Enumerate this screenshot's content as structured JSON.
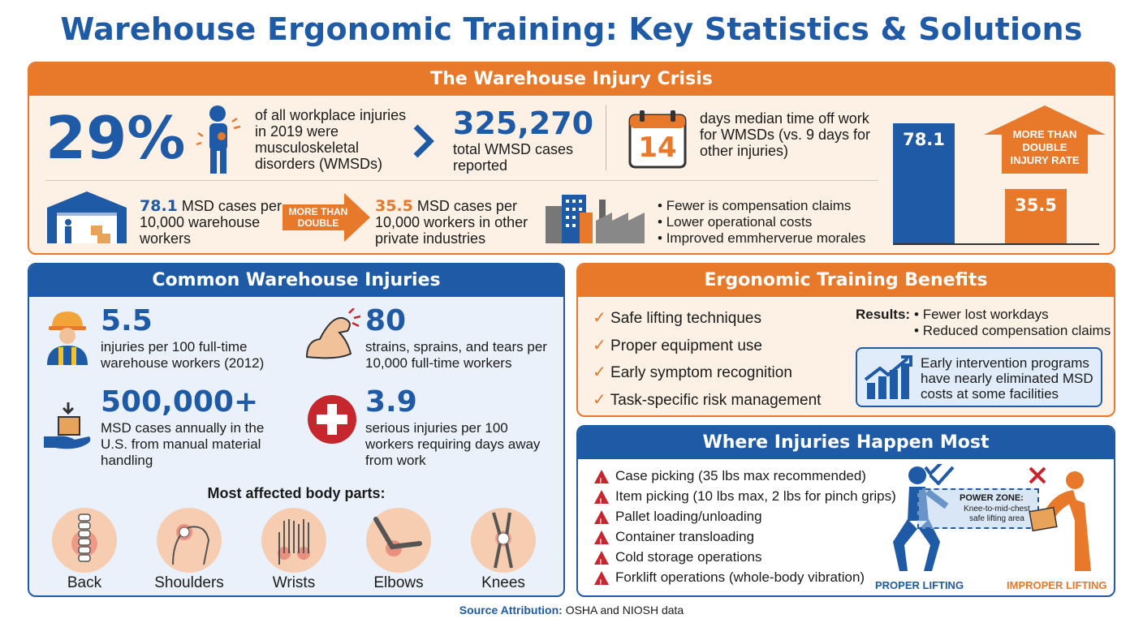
{
  "title": "Warehouse Ergonomic Training: Key Statistics & Solutions",
  "crisis": {
    "header": "The Warehouse Injury Crisis",
    "stat1_value": "29%",
    "stat1_text": "of all workplace injuries in 2019 were musculoskeletal disorders (WMSDs)",
    "stat2_value": "325,270",
    "stat2_text": "total WMSD cases reported",
    "calendar_value": "14",
    "stat3_text": "days median time off work for WMSDs (vs. 9 days for other injuries)",
    "warehouse_value": "78.1",
    "warehouse_text": "MSD cases per 10,000 warehouse workers",
    "more_than_double": "MORE THAN DOUBLE",
    "other_value": "35.5",
    "other_text": "MSD cases per 10,000 workers in other private industries",
    "bullets": [
      "Fewer is compensation claims",
      "Lower operational costs",
      "Improved emmherverue morales"
    ],
    "chart_arrow_label": "MORE THAN DOUBLE INJURY RATE"
  },
  "chart_data": {
    "type": "bar",
    "categories": [
      "",
      ""
    ],
    "values": [
      78.1,
      35.5
    ],
    "title": "",
    "colors": [
      "#1f5aa6",
      "#e8782a"
    ]
  },
  "injuries": {
    "header": "Common Warehouse Injuries",
    "items": [
      {
        "value": "5.5",
        "text": "injuries per 100 full-time warehouse workers (2012)",
        "icon": "worker-icon"
      },
      {
        "value": "80",
        "text": "strains, sprains, and tears per 10,000 full-time workers",
        "icon": "muscle-arm-icon"
      },
      {
        "value": "500,000+",
        "text": "MSD cases annually in the U.S. from manual material handling",
        "icon": "box-hand-icon"
      },
      {
        "value": "3.9",
        "text": "serious injuries per 100 workers requiring days away from work",
        "icon": "medical-cross-icon"
      }
    ],
    "body_parts_title": "Most affected body parts:",
    "body_parts": [
      "Back",
      "Shoulders",
      "Wrists",
      "Elbows",
      "Knees"
    ]
  },
  "benefits": {
    "header": "Ergonomic Training Benefits",
    "checks": [
      "Safe lifting techniques",
      "Proper equipment use",
      "Early symptom recognition",
      "Task-specific risk management"
    ],
    "results_label": "Results:",
    "results": [
      "Fewer lost workdays",
      "Reduced compensation claims"
    ],
    "callout": "Early intervention programs have nearly eliminated MSD costs at some facilities"
  },
  "where": {
    "header": "Where Injuries Happen Most",
    "items": [
      "Case picking (35 lbs max recommended)",
      "Item picking (10 lbs max, 2 lbs for pinch grips)",
      "Pallet loading/unloading",
      "Container transloading",
      "Cold storage operations",
      "Forklift operations (whole-body vibration)"
    ],
    "power_zone_title": "POWER ZONE:",
    "power_zone_text": "Knee-to-mid-chest safe lifting area",
    "proper": "PROPER LIFTING",
    "improper": "IMPROPER LIFTING"
  },
  "footer": {
    "label": "Source Attribution:",
    "text": "OSHA and NIOSH data"
  }
}
